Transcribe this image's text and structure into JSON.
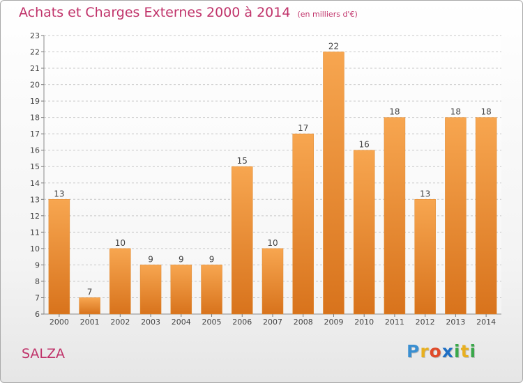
{
  "chart_data": {
    "type": "bar",
    "title": "Achats et Charges Externes 2000 à 2014",
    "subtitle": "(en milliers d'€)",
    "categories": [
      "2000",
      "2001",
      "2002",
      "2003",
      "2004",
      "2005",
      "2006",
      "2007",
      "2008",
      "2009",
      "2010",
      "2011",
      "2012",
      "2013",
      "2014"
    ],
    "values": [
      13,
      7,
      10,
      9,
      9,
      9,
      15,
      10,
      17,
      22,
      16,
      18,
      13,
      18,
      18
    ],
    "xlabel": "",
    "ylabel": "",
    "ylim": [
      6,
      23
    ],
    "yticks": [
      6,
      7,
      8,
      9,
      10,
      11,
      12,
      13,
      14,
      15,
      16,
      17,
      18,
      19,
      20,
      21,
      22,
      23
    ],
    "grid": "horizontal dashed",
    "bar_color": "#f0923a",
    "bar_color_dark": "#d8731c"
  },
  "footer": {
    "commune": "SALZA"
  },
  "logo": {
    "letters": [
      "P",
      "r",
      "o",
      "x",
      "i",
      "t",
      "i"
    ],
    "colors": [
      "#3a8fd1",
      "#e8b020",
      "#e04a2a",
      "#1f6fc4",
      "#3aa84a",
      "#e8b020",
      "#3aa84a"
    ]
  },
  "colors": {
    "title": "#c0336a",
    "axis_text": "#444444",
    "grid": "#c8c8c8"
  }
}
